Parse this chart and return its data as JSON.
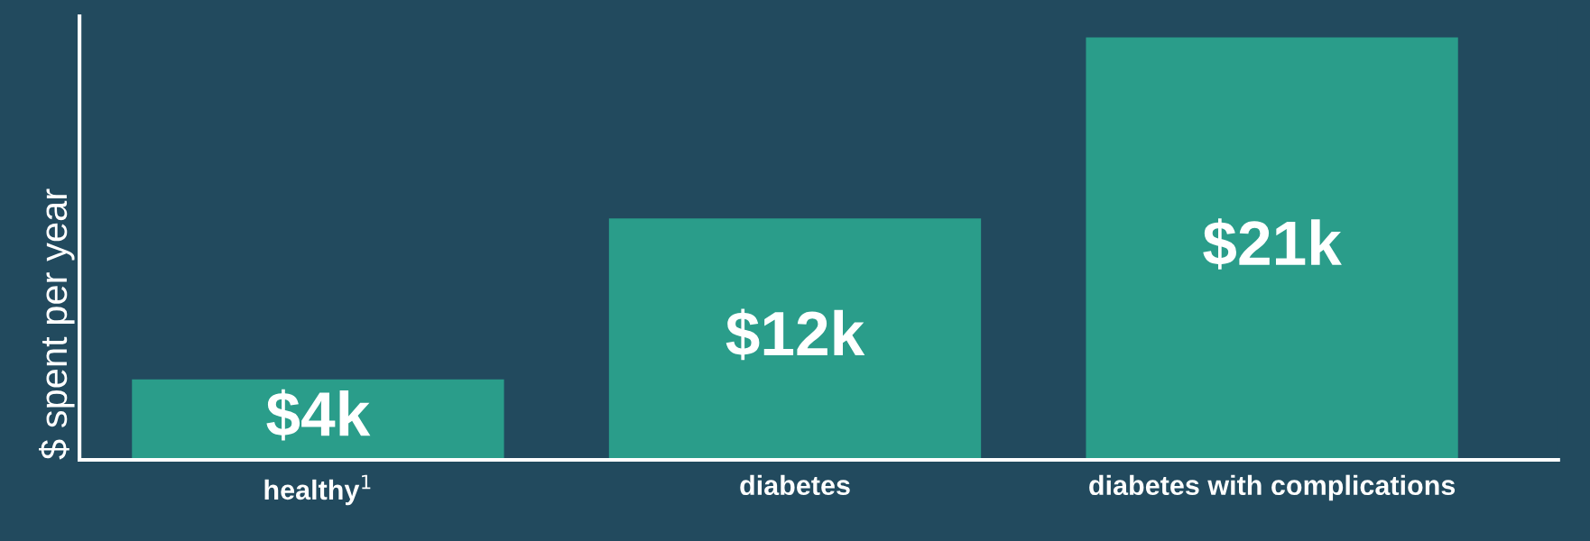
{
  "chart_data": {
    "type": "bar",
    "ylabel": "$ spent per year",
    "categories": [
      "healthy$^{1}$",
      "diabetes",
      "diabetes with complications"
    ],
    "values": [
      4,
      12,
      21
    ],
    "value_labels": [
      "$4k",
      "$12k",
      "$21k"
    ],
    "color": "#2a9d8a",
    "tick_labels": "x",
    "grid": false,
    "legend": false
  }
}
